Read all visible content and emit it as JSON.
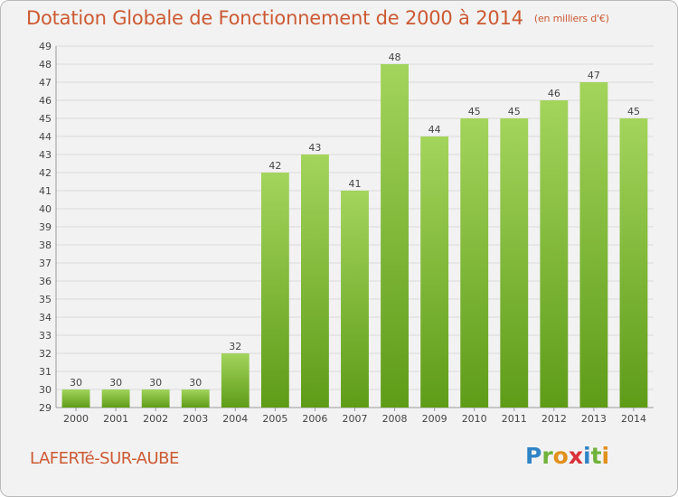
{
  "title": "Dotation Globale de Fonctionnement de 2000 à 2014",
  "subtitle": "(en milliers d'€)",
  "place_name": "LAFERTé-SUR-AUBE",
  "logo": {
    "text": "Proxiti",
    "letters": [
      "P",
      "r",
      "o",
      "x",
      "i",
      "t",
      "i"
    ]
  },
  "colors": {
    "bar_top": "#a3d45c",
    "bar_bottom": "#5e9c18",
    "title": "#cc5a33",
    "grid": "#d9d9d9"
  },
  "chart_data": {
    "type": "bar",
    "categories": [
      "2000",
      "2001",
      "2002",
      "2003",
      "2004",
      "2005",
      "2006",
      "2007",
      "2008",
      "2009",
      "2010",
      "2011",
      "2012",
      "2013",
      "2014"
    ],
    "series": [
      {
        "values": [
          30,
          30,
          30,
          30,
          32,
          42,
          43,
          41,
          48,
          44,
          45,
          45,
          46,
          47,
          45
        ]
      }
    ],
    "title": "Dotation Globale de Fonctionnement de 2000 à 2014",
    "subtitle": "(en milliers d'€)",
    "xlabel": "",
    "ylabel": "",
    "ylim": [
      29,
      49
    ],
    "yticks": [
      29,
      30,
      31,
      32,
      33,
      34,
      35,
      36,
      37,
      38,
      39,
      40,
      41,
      42,
      43,
      44,
      45,
      46,
      47,
      48,
      49
    ],
    "grid": true,
    "legend": "none",
    "data_labels": true
  }
}
